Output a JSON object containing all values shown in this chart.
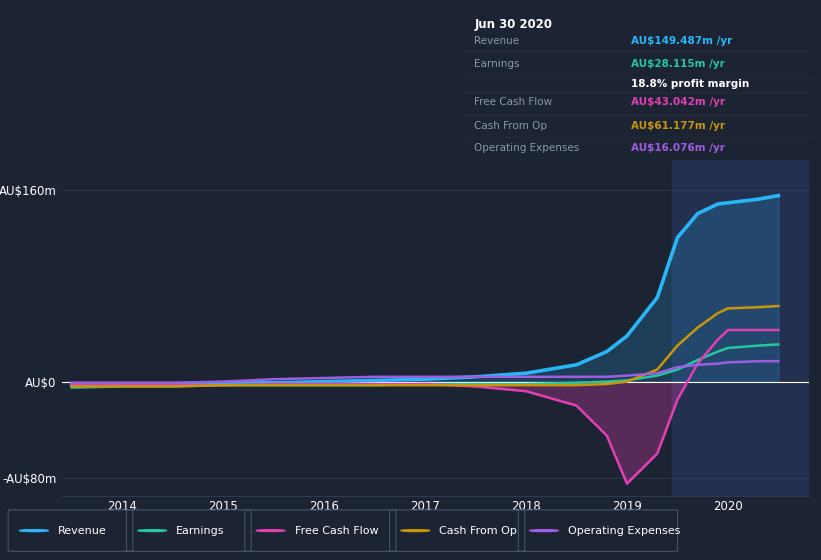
{
  "background_color": "#1c2333",
  "plot_bg_color": "#1c2333",
  "grid_color": "#2e3a50",
  "zero_line_color": "#ffffff",
  "highlight_color": "#243050",
  "legend_items": [
    {
      "label": "Revenue",
      "color": "#29b6f6"
    },
    {
      "label": "Earnings",
      "color": "#26c6a0"
    },
    {
      "label": "Free Cash Flow",
      "color": "#e040b0"
    },
    {
      "label": "Cash From Op",
      "color": "#c8960a"
    },
    {
      "label": "Operating Expenses",
      "color": "#9c5fe0"
    }
  ],
  "tooltip": {
    "date": "Jun 30 2020",
    "rows": [
      {
        "label": "Revenue",
        "val": "AU$149.487m",
        "val_color": "#29b6f6",
        "extra": null
      },
      {
        "label": "Earnings",
        "val": "AU$28.115m",
        "val_color": "#26c6a0",
        "extra": "18.8% profit margin"
      },
      {
        "label": "Free Cash Flow",
        "val": "AU$43.042m",
        "val_color": "#e040b0",
        "extra": null
      },
      {
        "label": "Cash From Op",
        "val": "AU$61.177m",
        "val_color": "#c8960a",
        "extra": null
      },
      {
        "label": "Operating Expenses",
        "val": "AU$16.076m",
        "val_color": "#9c5fe0",
        "extra": null
      }
    ]
  },
  "ytick_positions": [
    -80,
    0,
    160
  ],
  "ytick_labels": [
    "-AU$80m",
    "AU$0",
    "AU$160m"
  ],
  "xtick_positions": [
    2014,
    2015,
    2016,
    2017,
    2018,
    2019,
    2020
  ],
  "xlim": [
    2013.4,
    2020.8
  ],
  "ylim": [
    -95,
    185
  ],
  "highlight_x_start": 2019.45,
  "highlight_x_end": 2020.8,
  "series": {
    "x": [
      2013.5,
      2014.0,
      2014.5,
      2015.0,
      2015.5,
      2016.0,
      2016.5,
      2017.0,
      2017.5,
      2018.0,
      2018.5,
      2018.8,
      2019.0,
      2019.3,
      2019.5,
      2019.7,
      2019.9,
      2020.0,
      2020.3,
      2020.5
    ],
    "revenue": [
      -3,
      -2,
      -2,
      -1,
      -1,
      0,
      1,
      2,
      4,
      7,
      14,
      25,
      38,
      70,
      120,
      140,
      148,
      149,
      152,
      155
    ],
    "earnings": [
      -5,
      -4,
      -4,
      -3,
      -3,
      -3,
      -3,
      -2,
      -2,
      -2,
      -1,
      0,
      1,
      5,
      10,
      18,
      25,
      28,
      30,
      31
    ],
    "fcf": [
      -3,
      -3,
      -3,
      -3,
      -2,
      -2,
      -2,
      -2,
      -4,
      -8,
      -20,
      -45,
      -85,
      -60,
      -15,
      15,
      35,
      43,
      43,
      43
    ],
    "cashop": [
      -4,
      -4,
      -4,
      -3,
      -3,
      -3,
      -3,
      -3,
      -3,
      -3,
      -3,
      -2,
      0,
      10,
      30,
      45,
      57,
      61,
      62,
      63
    ],
    "opex": [
      -1,
      -1,
      -1,
      0,
      2,
      3,
      4,
      4,
      4,
      4,
      4,
      4,
      5,
      7,
      12,
      14,
      15,
      16,
      17,
      17
    ]
  }
}
